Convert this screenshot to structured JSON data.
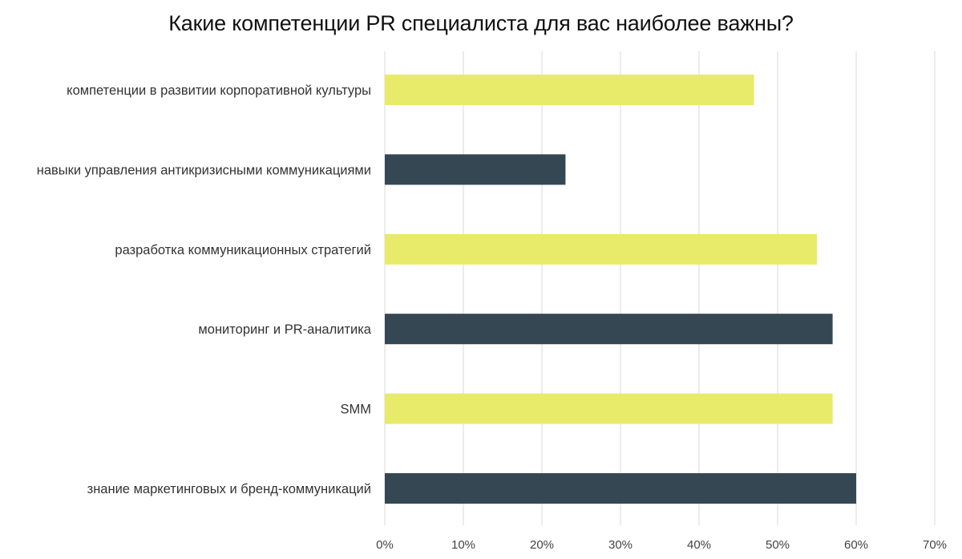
{
  "chart_data": {
    "type": "bar",
    "orientation": "horizontal",
    "title": "Какие компетенции PR специалиста для вас наиболее важны?",
    "categories": [
      "компетенции в развитии корпоративной культуры",
      "навыки управления антикризисными коммуникациями",
      "разработка коммуникационных стратегий",
      "мониторинг и PR-аналитика",
      "SMM",
      "знание маркетинговых и бренд-коммуникаций"
    ],
    "values": [
      47,
      23,
      55,
      57,
      57,
      60
    ],
    "unit": "%",
    "xlim": [
      0,
      70
    ],
    "xticks": [
      0,
      10,
      20,
      30,
      40,
      50,
      60,
      70
    ],
    "xtick_labels": [
      "0%",
      "10%",
      "20%",
      "30%",
      "40%",
      "50%",
      "60%",
      "70%"
    ],
    "grid": "vertical",
    "legend": "none",
    "colors": [
      "#e8ea6a",
      "#364754"
    ]
  }
}
